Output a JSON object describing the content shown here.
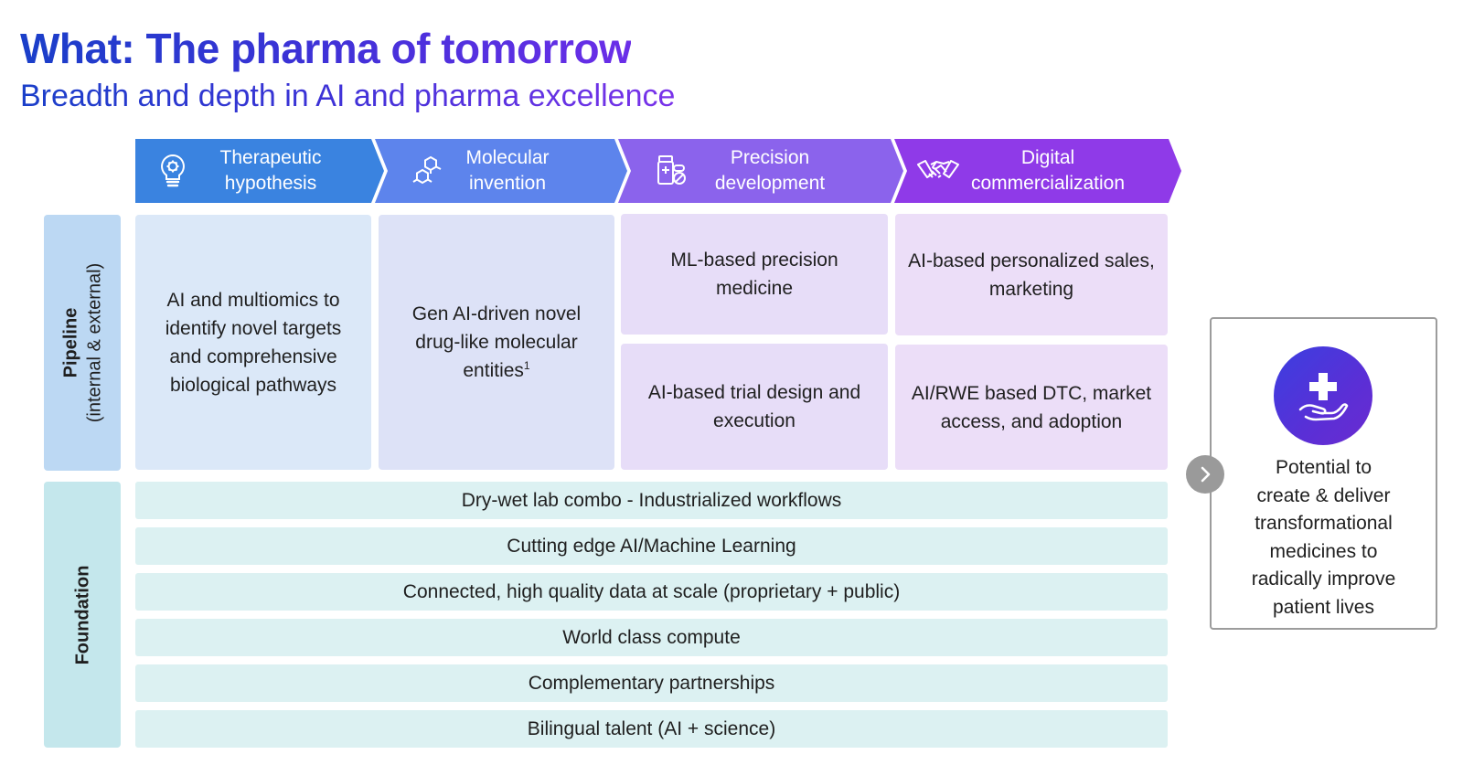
{
  "header": {
    "title": "What: The pharma of tomorrow",
    "subtitle": "Breadth and depth in AI and pharma excellence"
  },
  "stages": [
    {
      "label": "Therapeutic\nhypothesis",
      "icon": "lightbulb-gear-icon",
      "color": "#3a83e0"
    },
    {
      "label": "Molecular\ninvention",
      "icon": "molecule-icon",
      "color": "#5d84ec"
    },
    {
      "label": "Precision\ndevelopment",
      "icon": "medicine-bottle-pills-icon",
      "color": "#8b63ec"
    },
    {
      "label": "Digital\ncommercialization",
      "icon": "handshake-icon",
      "color": "#8f3ae8"
    }
  ],
  "pipeline": {
    "label": "Pipeline",
    "sublabel": "(internal & external)",
    "cells": {
      "therapeutic": "AI and multiomics to identify novel targets and comprehensive biological pathways",
      "molecular": "Gen AI-driven novel drug-like molecular entities",
      "molecular_footnote": "1",
      "precision_top": "ML-based precision medicine",
      "precision_bottom": "AI-based trial design and execution",
      "digital_top": "AI-based personalized sales, marketing",
      "digital_bottom": "AI/RWE based DTC, market access, and adoption"
    }
  },
  "foundation": {
    "label": "Foundation",
    "items": [
      "Dry-wet lab combo - Industrialized workflows",
      "Cutting edge AI/Machine Learning",
      "Connected, high quality data at scale (proprietary + public)",
      "World class compute",
      "Complementary partnerships",
      "Bilingual talent (AI + science)"
    ]
  },
  "outcome": {
    "icon": "hand-medical-cross-icon",
    "arrow_icon": "chevron-right-icon",
    "text": "Potential to\ncreate & deliver\ntransformational\nmedicines to\nradically improve\npatient lives"
  }
}
